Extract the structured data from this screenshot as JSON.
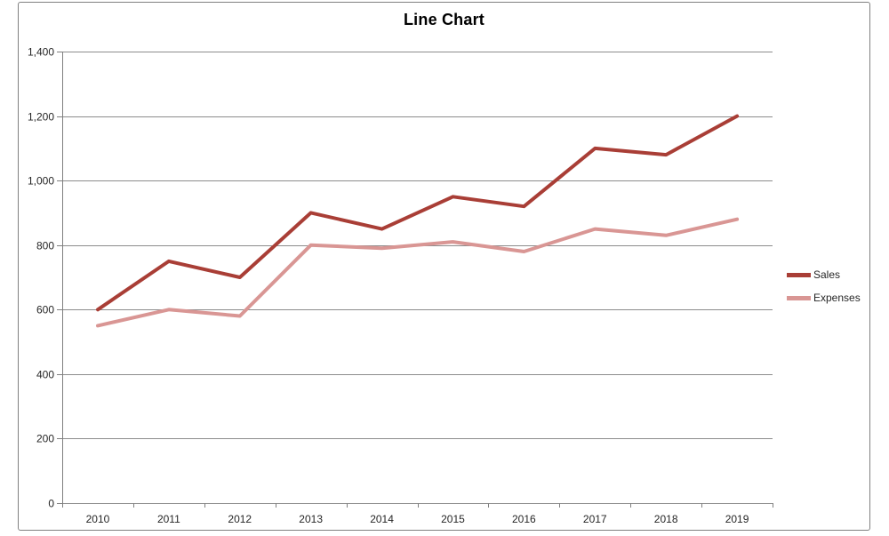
{
  "title": "Line Chart",
  "colors": {
    "border": "#808080",
    "gridline": "#8C8C8C",
    "axis": "#7F7F7F",
    "text": "#262626",
    "title": "#000000",
    "background": "#FFFFFF"
  },
  "legend": {
    "position": "right",
    "items": [
      {
        "label": "Sales"
      },
      {
        "label": "Expenses"
      }
    ]
  },
  "chart_data": {
    "type": "line",
    "title": "Line Chart",
    "categories": [
      "2010",
      "2011",
      "2012",
      "2013",
      "2014",
      "2015",
      "2016",
      "2017",
      "2018",
      "2019"
    ],
    "series": [
      {
        "name": "Sales",
        "color": "#A93E36",
        "values": [
          600,
          750,
          700,
          900,
          850,
          950,
          920,
          1100,
          1080,
          1200
        ]
      },
      {
        "name": "Expenses",
        "color": "#D99694",
        "values": [
          550,
          600,
          580,
          800,
          790,
          810,
          780,
          850,
          830,
          880
        ]
      }
    ],
    "ylim": [
      0,
      1400
    ],
    "y_tick_step": 200,
    "y_tick_labels": [
      "0",
      "200",
      "400",
      "600",
      "800",
      "1,000",
      "1,200",
      "1,400"
    ],
    "grid": true,
    "legend_position": "right"
  }
}
